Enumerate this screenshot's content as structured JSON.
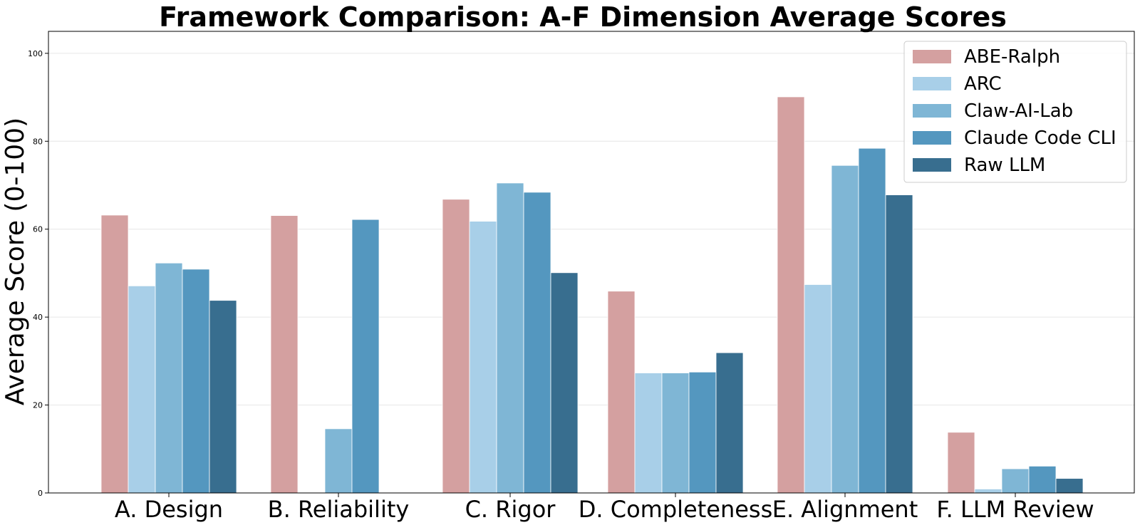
{
  "chart_data": {
    "type": "bar",
    "title": "Framework Comparison: A-F Dimension Average Scores",
    "xlabel": "",
    "ylabel": "Average Score (0-100)",
    "ylim": [
      0,
      105
    ],
    "yticks": [
      0,
      20,
      40,
      60,
      80,
      100
    ],
    "grid": true,
    "legend_position": "top-right",
    "categories": [
      "A. Design",
      "B. Reliability",
      "C. Rigor",
      "D. Completeness",
      "E. Alignment",
      "F. LLM Review"
    ],
    "series": [
      {
        "name": "ABE-Ralph",
        "color": "#d4a0a0",
        "values": [
          63.2,
          63.1,
          66.8,
          45.9,
          90.1,
          13.8
        ]
      },
      {
        "name": "ARC",
        "color": "#a8cfe8",
        "values": [
          47.1,
          0,
          61.8,
          27.3,
          47.4,
          0.9
        ]
      },
      {
        "name": "Claw-AI-Lab",
        "color": "#7fb6d5",
        "values": [
          52.3,
          14.6,
          70.5,
          27.3,
          74.5,
          5.5
        ]
      },
      {
        "name": "Claude Code CLI",
        "color": "#5497bf",
        "values": [
          50.9,
          62.2,
          68.4,
          27.5,
          78.4,
          6.1
        ]
      },
      {
        "name": "Raw LLM",
        "color": "#386e8f",
        "values": [
          43.8,
          0,
          50.1,
          31.9,
          67.8,
          3.3
        ]
      }
    ]
  }
}
